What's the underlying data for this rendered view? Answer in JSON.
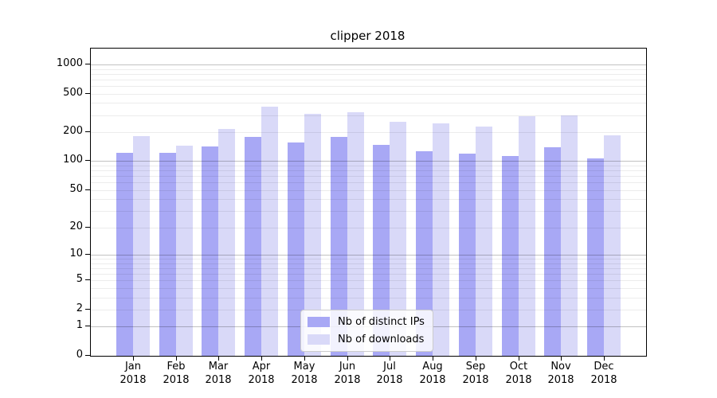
{
  "title": "clipper 2018",
  "chart_data": {
    "type": "bar",
    "title": "clipper 2018",
    "categories": [
      "Jan 2018",
      "Feb 2018",
      "Mar 2018",
      "Apr 2018",
      "May 2018",
      "Jun 2018",
      "Jul 2018",
      "Aug 2018",
      "Sep 2018",
      "Oct 2018",
      "Nov 2018",
      "Dec 2018"
    ],
    "series": [
      {
        "name": "Nb of distinct IPs",
        "color": "#a8a8f5",
        "values": [
          122,
          121,
          141,
          180,
          157,
          180,
          149,
          126,
          119,
          113,
          140,
          107
        ]
      },
      {
        "name": "Nb of downloads",
        "color": "#d9d9f8",
        "values": [
          183,
          146,
          217,
          364,
          312,
          322,
          256,
          247,
          229,
          292,
          299,
          186
        ]
      }
    ],
    "yscale": "log1p",
    "yticks": [
      0,
      1,
      2,
      5,
      10,
      20,
      50,
      100,
      200,
      500,
      1000
    ],
    "ylim": [
      0,
      1500
    ],
    "grid": "on",
    "legend_position": "lower-center",
    "xlabel": "",
    "ylabel": ""
  }
}
